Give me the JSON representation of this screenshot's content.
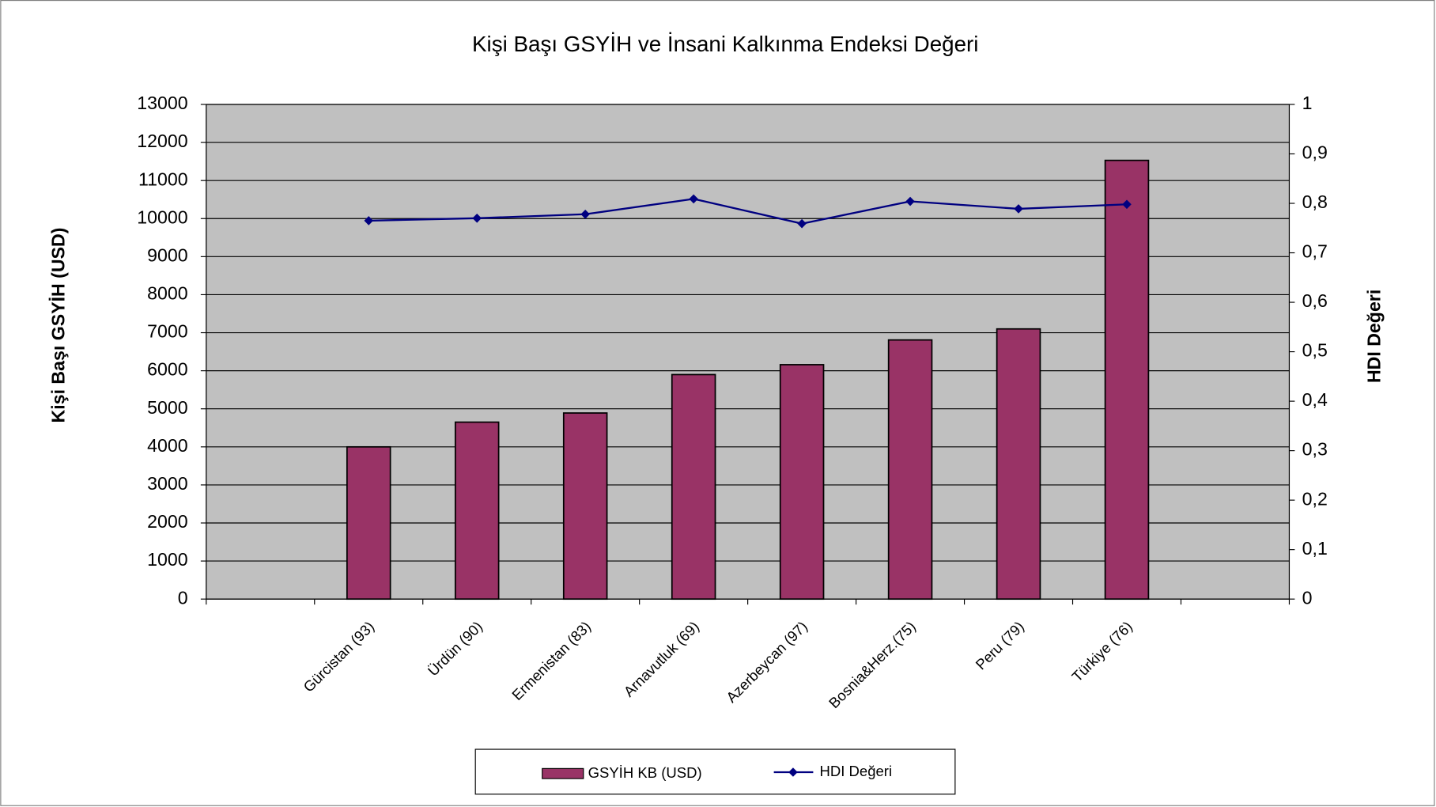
{
  "chart_data": {
    "type": "bar_line",
    "title": "Kişi Başı GSYİH ve İnsani Kalkınma Endeksi Değeri",
    "y_label": "Kişi Başı GSYİH (USD)",
    "y2_label": "HDI Değeri",
    "categories": [
      null,
      "Gürcistan (93)",
      "Ürdün (90)",
      "Ermenistan (83)",
      "Arnavutluk (69)",
      "Azerbeycan (97)",
      "Bosnia&Herz.(75)",
      "Peru (79)",
      "Türkiye (76)",
      null
    ],
    "series": [
      {
        "name": "GSYİH KB (USD)",
        "color": "#993366",
        "type": "bar",
        "values": [
          null,
          4000,
          4650,
          4890,
          5900,
          6160,
          6810,
          7100,
          11530,
          null
        ]
      },
      {
        "name": "HDI Değeri",
        "color": "#000080",
        "type": "line",
        "axis": "y2",
        "values": [
          null,
          0.765,
          0.77,
          0.778,
          0.809,
          0.759,
          0.804,
          0.789,
          0.798,
          null
        ]
      }
    ],
    "ylim": [
      0,
      13000
    ],
    "yticks": [
      0,
      1000,
      2000,
      3000,
      4000,
      5000,
      6000,
      7000,
      8000,
      9000,
      10000,
      11000,
      12000,
      13000
    ],
    "y2lim": [
      0,
      1
    ],
    "y2ticks": [
      0,
      {
        "value": 0.1,
        "label": "0,1"
      },
      {
        "value": 0.2,
        "label": "0,2"
      },
      {
        "value": 0.3,
        "label": "0,3"
      },
      {
        "value": 0.4,
        "label": "0,4"
      },
      {
        "value": 0.5,
        "label": "0,5"
      },
      {
        "value": 0.6,
        "label": "0,6"
      },
      {
        "value": 0.7,
        "label": "0,7"
      },
      {
        "value": 0.8,
        "label": "0,8"
      },
      {
        "value": 0.9,
        "label": "0,9"
      },
      1
    ],
    "grid": true,
    "plot_background": "#c0c0c0",
    "legend": "bottom"
  }
}
